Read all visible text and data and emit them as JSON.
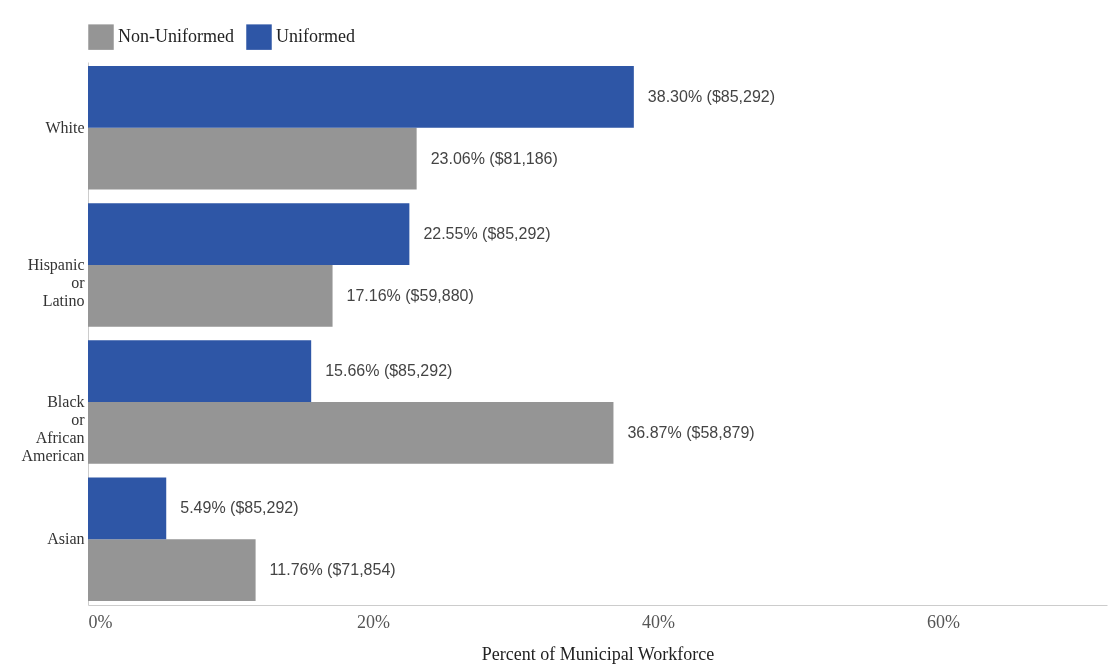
{
  "chart_data": {
    "type": "bar",
    "orientation": "horizontal",
    "xlabel": "Percent of Municipal Workforce",
    "categories": [
      "White",
      "Hispanic or Latino",
      "Black or African American",
      "Asian"
    ],
    "series": [
      {
        "name": "Non-Uniformed",
        "color": "#959595",
        "values": [
          23.06,
          17.16,
          36.87,
          11.76
        ],
        "value_labels": [
          "23.06% ($81,186)",
          "17.16% ($59,880)",
          "36.87% ($58,879)",
          "11.76% ($71,854)"
        ]
      },
      {
        "name": "Uniformed",
        "color": "#2e56a6",
        "values": [
          38.3,
          22.55,
          15.66,
          5.49
        ],
        "value_labels": [
          "38.30% ($85,292)",
          "22.55% ($85,292)",
          "15.66% ($85,292)",
          "5.49% ($85,292)"
        ]
      }
    ],
    "xlim": [
      0,
      71.5
    ],
    "xticks": [
      {
        "value": 0,
        "label": "0%"
      },
      {
        "value": 20,
        "label": "20%"
      },
      {
        "value": 40,
        "label": "40%"
      },
      {
        "value": 60,
        "label": "60%"
      }
    ],
    "grid": false,
    "legend": "top"
  }
}
